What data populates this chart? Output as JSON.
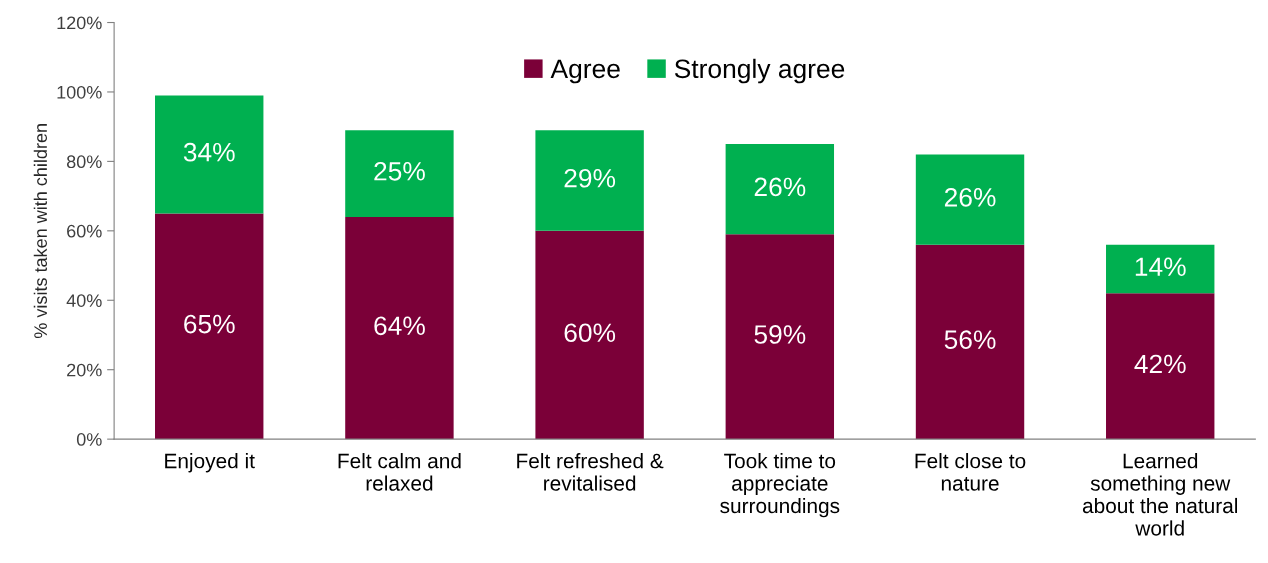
{
  "chart_data": {
    "type": "bar",
    "stacked": true,
    "ylabel": "% visits taken with children",
    "categories": [
      "Enjoyed it",
      "Felt calm and\nrelaxed",
      "Felt refreshed &\nrevitalised",
      "Took time to\nappreciate\nsurroundings",
      "Felt close to\nnature",
      "Learned\nsomething new\nabout the natural\nworld"
    ],
    "series": [
      {
        "name": "Agree",
        "color": "#7b0038",
        "values": [
          65,
          64,
          60,
          59,
          56,
          42
        ],
        "value_labels": [
          "65%",
          "64%",
          "60%",
          "59%",
          "56%",
          "42%"
        ]
      },
      {
        "name": "Strongly agree",
        "color": "#00b050",
        "values": [
          34,
          25,
          29,
          26,
          26,
          14
        ],
        "value_labels": [
          "34%",
          "25%",
          "29%",
          "26%",
          "26%",
          "14%"
        ]
      }
    ],
    "ylim": [
      0,
      120
    ],
    "yticks": [
      {
        "value": 0,
        "label": "0%"
      },
      {
        "value": 20,
        "label": "20%"
      },
      {
        "value": 40,
        "label": "40%"
      },
      {
        "value": 60,
        "label": "60%"
      },
      {
        "value": 80,
        "label": "80%"
      },
      {
        "value": 100,
        "label": "100%"
      },
      {
        "value": 120,
        "label": "120%"
      }
    ],
    "grid": false,
    "legend": "top"
  }
}
